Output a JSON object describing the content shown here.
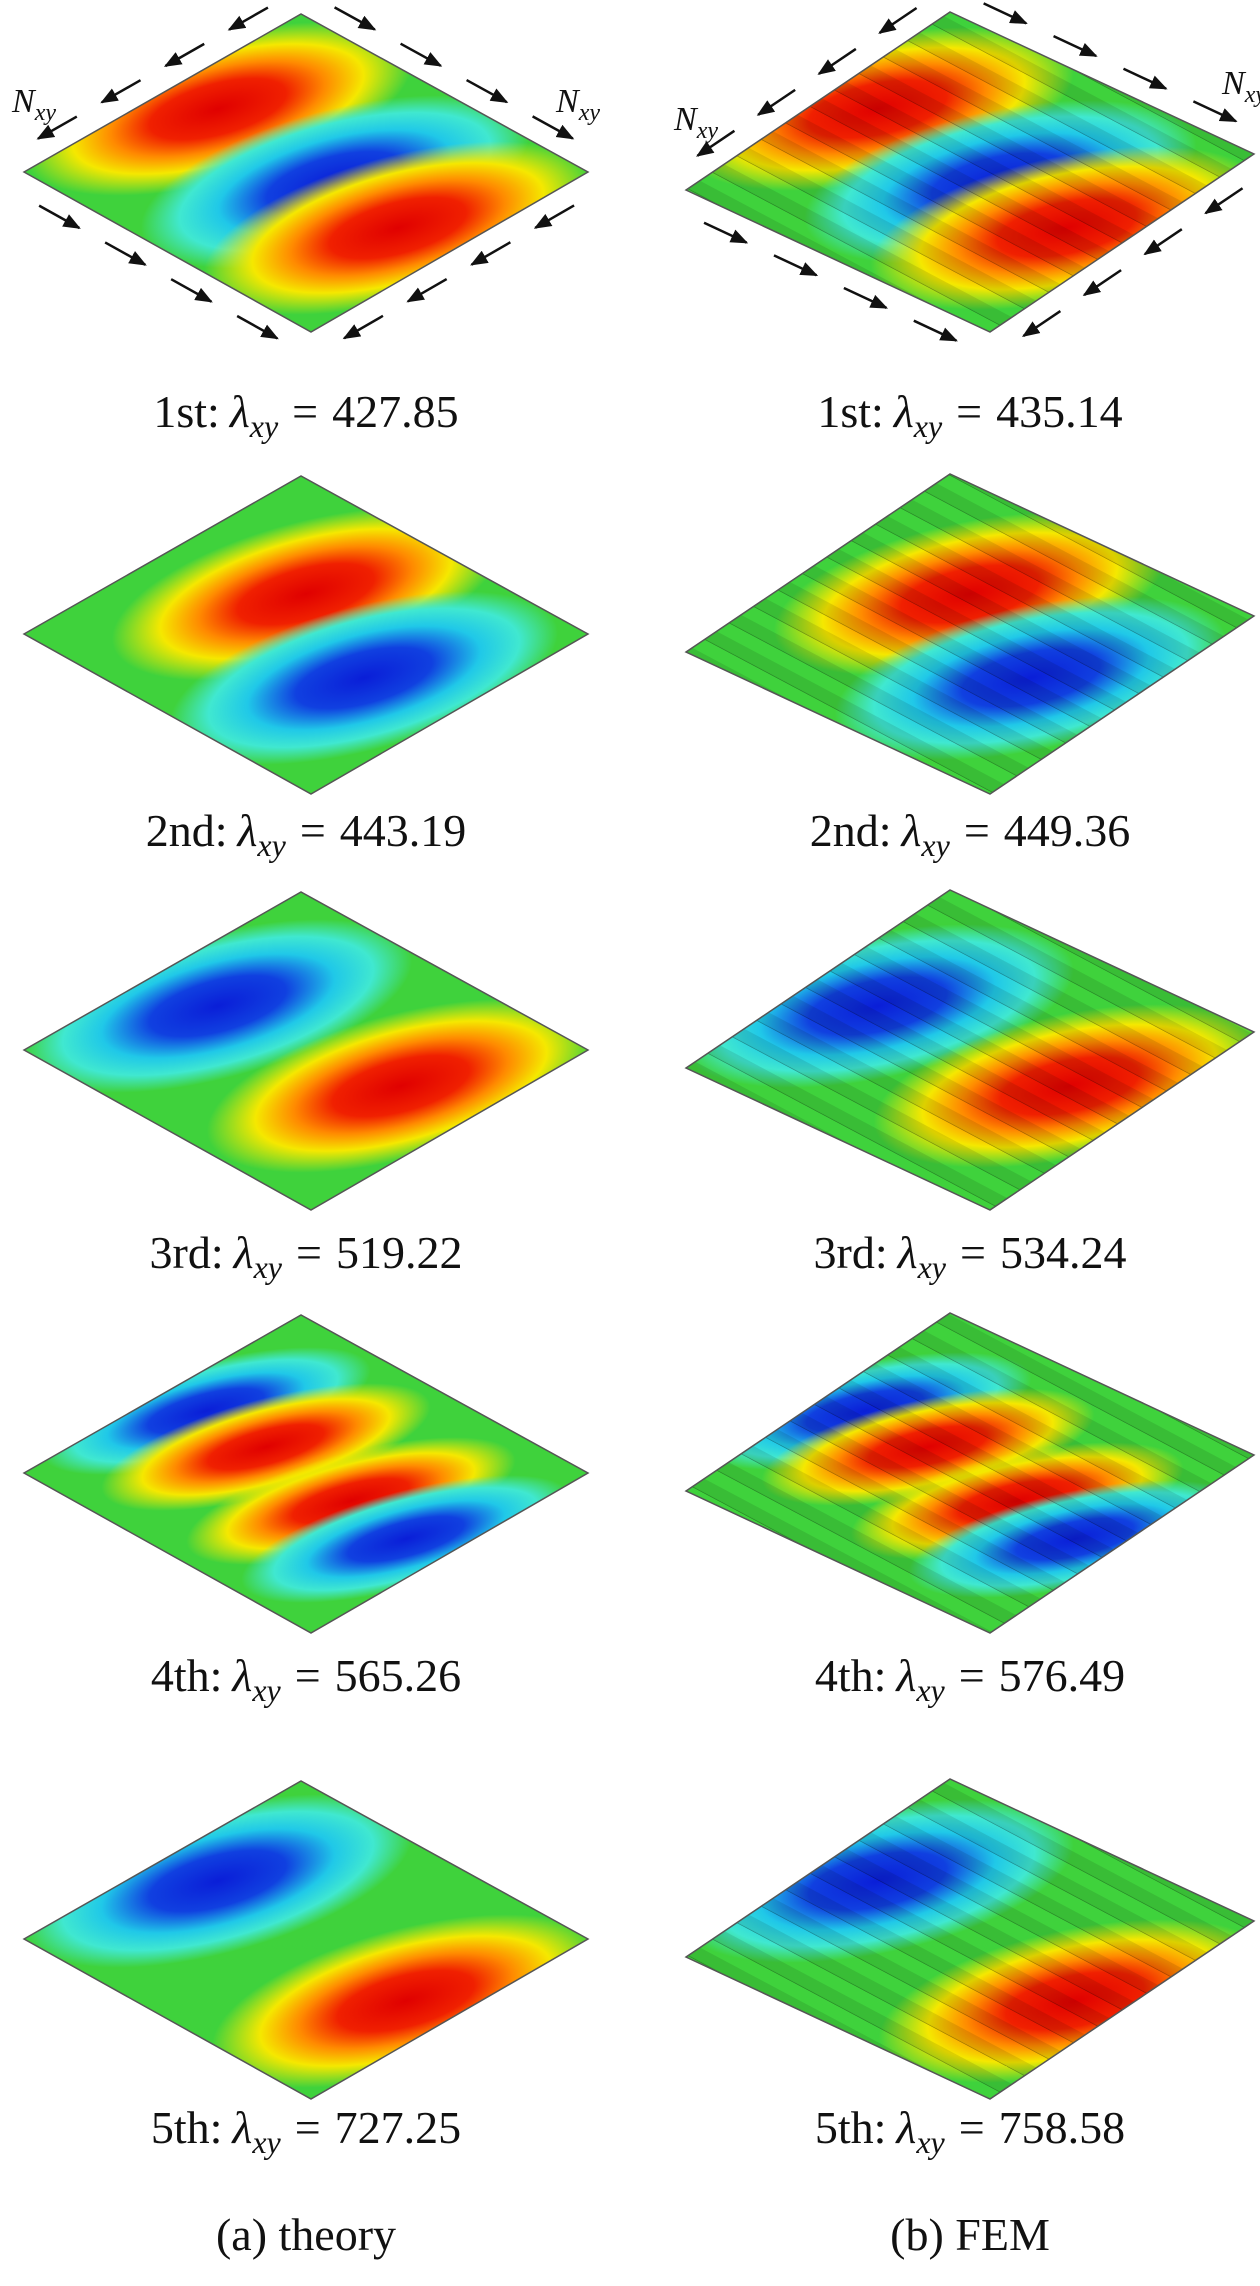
{
  "force_label": {
    "base": "N",
    "sub": "xy"
  },
  "symbol": {
    "base": "λ",
    "sub": "xy",
    "eq": "="
  },
  "columns": [
    {
      "caption": "(a) theory",
      "modes": [
        {
          "label": "1st:",
          "value": "427.85"
        },
        {
          "label": "2nd:",
          "value": "443.19"
        },
        {
          "label": "3rd:",
          "value": "519.22"
        },
        {
          "label": "4th:",
          "value": "565.26"
        },
        {
          "label": "5th:",
          "value": "727.25"
        }
      ]
    },
    {
      "caption": "(b) FEM",
      "modes": [
        {
          "label": "1st:",
          "value": "435.14"
        },
        {
          "label": "2nd:",
          "value": "449.36"
        },
        {
          "label": "3rd:",
          "value": "534.24"
        },
        {
          "label": "4th:",
          "value": "576.49"
        },
        {
          "label": "5th:",
          "value": "758.58"
        }
      ]
    }
  ]
}
